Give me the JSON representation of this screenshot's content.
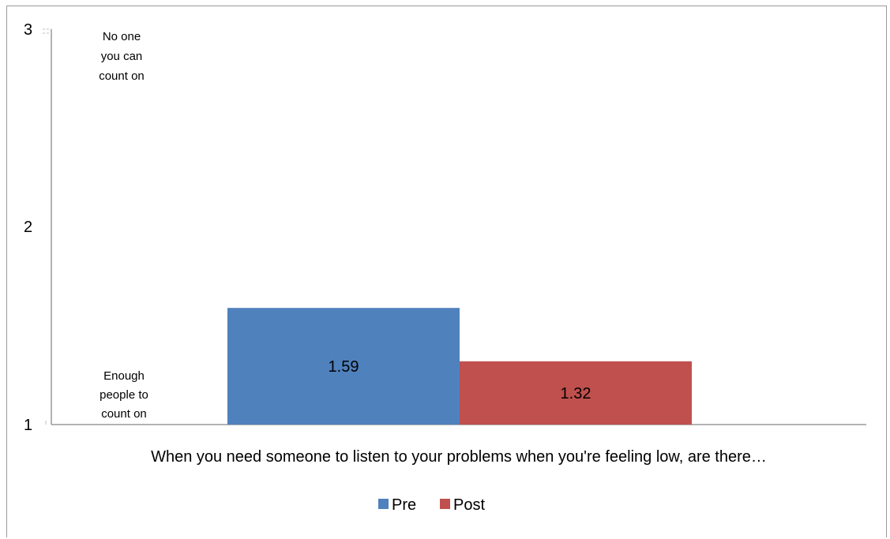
{
  "chart_data": {
    "type": "bar",
    "categories": [
      "When you need someone to listen to your problems when you're feeling low, are there…"
    ],
    "series": [
      {
        "name": "Pre",
        "values": [
          1.59
        ],
        "color": "#4f81bd",
        "data_label": "1.59"
      },
      {
        "name": "Post",
        "values": [
          1.32
        ],
        "color": "#c0504d",
        "data_label": "1.32"
      }
    ],
    "ylim": [
      1,
      3
    ],
    "y_ticks": [
      "1",
      "2",
      "3"
    ],
    "grid": false,
    "legend_position": "bottom",
    "annotations": {
      "top": [
        "No one",
        "you can",
        "count on"
      ],
      "bottom": [
        "Enough",
        "people to",
        "count on"
      ]
    },
    "title": "",
    "xlabel": "",
    "ylabel": ""
  }
}
